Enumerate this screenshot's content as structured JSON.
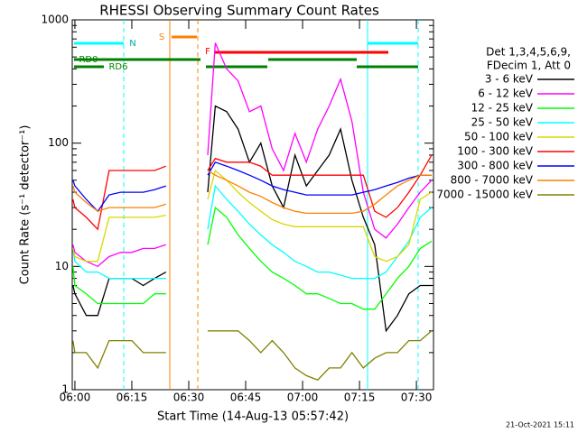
{
  "chart_data": {
    "type": "line",
    "log_y": true,
    "title": "RHESSI Observing Summary Count Rates",
    "xlabel": "Start Time (14-Aug-13 05:57:42)",
    "ylabel": "Count Rate (s⁻¹ detector⁻¹)",
    "legend_header": [
      "Det 1,3,4,5,6,9,",
      "FDecim 1, Att 0"
    ],
    "annotations": [
      "N",
      "S",
      "F",
      "RD0",
      "RD6"
    ],
    "timestamp": "21-Oct-2021 15:11",
    "xlim": [
      -0.7,
      94.5
    ],
    "xticks": [
      {
        "value": 0,
        "label": "06:00"
      },
      {
        "value": 15,
        "label": "06:15"
      },
      {
        "value": 30,
        "label": "06:30"
      },
      {
        "value": 45,
        "label": "06:45"
      },
      {
        "value": 60,
        "label": "07:00"
      },
      {
        "value": 75,
        "label": "07:15"
      },
      {
        "value": 90,
        "label": "07:30"
      }
    ],
    "ylim": [
      1,
      1000
    ],
    "yticks": [
      1,
      10,
      100,
      1000
    ],
    "x": [
      -0.5,
      0,
      3,
      6,
      9,
      12,
      15,
      18,
      21,
      24,
      30,
      35,
      37,
      40,
      43,
      46,
      49,
      52,
      55,
      58,
      61,
      64,
      67,
      70,
      73,
      76,
      79,
      82,
      85,
      88,
      91,
      94
    ],
    "series": [
      {
        "name": "3 - 6 keV",
        "color": "#000000",
        "values": [
          7,
          6,
          4,
          4,
          8,
          8,
          8,
          7,
          8,
          9,
          null,
          40,
          200,
          180,
          130,
          70,
          100,
          45,
          30,
          80,
          45,
          60,
          80,
          130,
          50,
          25,
          15,
          3,
          4,
          6,
          7,
          7
        ]
      },
      {
        "name": "6 - 12 keV",
        "color": "#ff00ff",
        "values": [
          15,
          13,
          11,
          10,
          12,
          13,
          13,
          14,
          14,
          15,
          null,
          80,
          650,
          400,
          320,
          180,
          200,
          90,
          60,
          120,
          70,
          130,
          200,
          330,
          150,
          40,
          20,
          17,
          22,
          30,
          40,
          50
        ]
      },
      {
        "name": "12 - 25 keV",
        "color": "#00ff00",
        "values": [
          10,
          7,
          6,
          5,
          5,
          5,
          5,
          5,
          6,
          6,
          null,
          15,
          30,
          25,
          18,
          14,
          11,
          9,
          8,
          7,
          6,
          6,
          5.5,
          5,
          5,
          4.5,
          4.5,
          6,
          8,
          10,
          14,
          16
        ]
      },
      {
        "name": "25 - 50 keV",
        "color": "#00ffff",
        "values": [
          14,
          11,
          9,
          9,
          8,
          8,
          8,
          8,
          8,
          8,
          null,
          20,
          45,
          35,
          28,
          22,
          18,
          15,
          13,
          11,
          10,
          9,
          9,
          8.5,
          8,
          8,
          8,
          9,
          12,
          16,
          25,
          30
        ]
      },
      {
        "name": "50 - 100 keV",
        "color": "#d8d800",
        "values": [
          14,
          12,
          11,
          11,
          25,
          25,
          25,
          25,
          25,
          26,
          null,
          35,
          60,
          50,
          40,
          33,
          28,
          24,
          22,
          21,
          21,
          21,
          21,
          21,
          21,
          21,
          12,
          11,
          12,
          15,
          35,
          40
        ]
      },
      {
        "name": "100 - 300 keV",
        "color": "#ff0000",
        "values": [
          35,
          30,
          25,
          20,
          60,
          60,
          60,
          60,
          60,
          65,
          null,
          60,
          75,
          70,
          70,
          70,
          65,
          55,
          55,
          55,
          55,
          55,
          55,
          55,
          55,
          55,
          28,
          25,
          30,
          40,
          55,
          80
        ]
      },
      {
        "name": "300 - 800 keV",
        "color": "#0000ff",
        "values": [
          50,
          45,
          35,
          28,
          38,
          40,
          40,
          40,
          42,
          45,
          null,
          55,
          70,
          65,
          60,
          55,
          50,
          45,
          42,
          40,
          38,
          38,
          38,
          38,
          38,
          40,
          42,
          45,
          48,
          52,
          55,
          55
        ]
      },
      {
        "name": "800 - 7000 keV",
        "color": "#ff8000",
        "values": [
          45,
          40,
          33,
          28,
          30,
          30,
          30,
          30,
          30,
          32,
          null,
          60,
          55,
          50,
          45,
          40,
          37,
          33,
          30,
          28,
          27,
          27,
          27,
          27,
          27,
          28,
          32,
          38,
          45,
          50,
          55,
          55
        ]
      },
      {
        "name": "7000 - 15000 keV",
        "color": "#808000",
        "values": [
          2.5,
          2,
          2,
          1.5,
          2.5,
          2.5,
          2.5,
          2,
          2,
          2,
          null,
          3,
          3,
          3,
          3,
          2.5,
          2,
          2.5,
          2,
          1.5,
          1.3,
          1.2,
          1.5,
          1.5,
          2,
          1.5,
          1.8,
          2,
          2,
          2.5,
          2.5,
          3
        ]
      }
    ]
  }
}
